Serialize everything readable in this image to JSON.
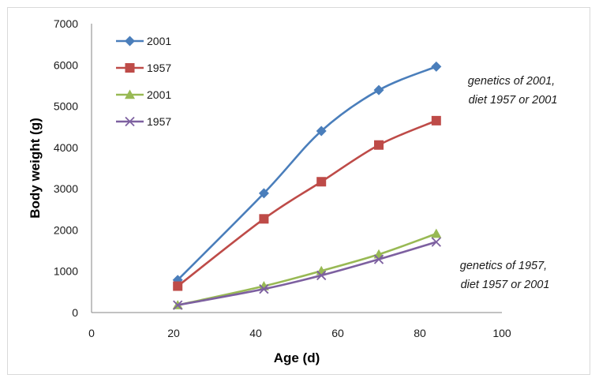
{
  "chart_data": {
    "type": "line",
    "title": "",
    "xlabel": "Age (d)",
    "ylabel": "Body weight (g)",
    "xlim": [
      0,
      100
    ],
    "ylim": [
      0,
      7000
    ],
    "xticks": [
      0,
      20,
      40,
      60,
      80,
      100
    ],
    "yticks": [
      0,
      1000,
      2000,
      3000,
      4000,
      5000,
      6000,
      7000
    ],
    "grid": false,
    "legend_position": "top-left",
    "series": [
      {
        "name": "2001",
        "color": "#4a7ebb",
        "marker": "diamond",
        "x": [
          21,
          42,
          56,
          70,
          84
        ],
        "y": [
          790,
          2890,
          4400,
          5390,
          5960
        ]
      },
      {
        "name": "1957",
        "color": "#be4b48",
        "marker": "square",
        "x": [
          21,
          42,
          56,
          70,
          84
        ],
        "y": [
          640,
          2270,
          3170,
          4060,
          4650
        ]
      },
      {
        "name": "2001",
        "color": "#98b954",
        "marker": "triangle",
        "x": [
          21,
          42,
          56,
          70,
          84
        ],
        "y": [
          180,
          640,
          1010,
          1410,
          1910
        ]
      },
      {
        "name": "1957",
        "color": "#7d60a0",
        "marker": "x",
        "x": [
          21,
          42,
          56,
          70,
          84
        ],
        "y": [
          180,
          570,
          900,
          1290,
          1710
        ]
      }
    ],
    "annotations": [
      {
        "id": "upper",
        "lines": [
          "genetics of 2001,",
          "diet 1957 or 2001"
        ]
      },
      {
        "id": "lower",
        "lines": [
          "genetics of 1957,",
          "diet 1957 or 2001"
        ]
      }
    ]
  }
}
